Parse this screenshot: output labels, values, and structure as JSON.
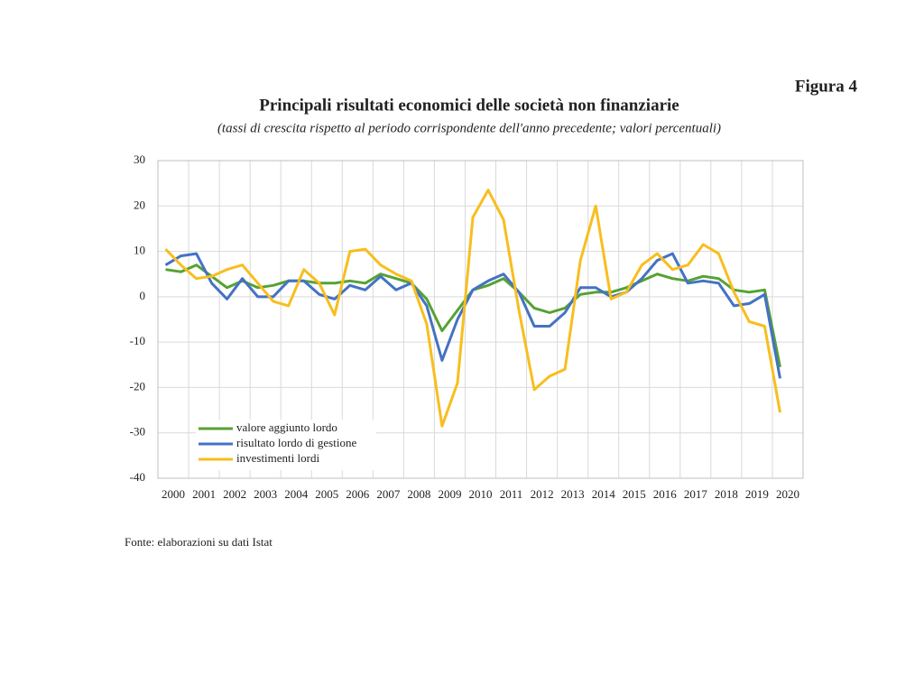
{
  "figure_label": "Figura 4",
  "chart_data": {
    "type": "line",
    "title": "Principali risultati economici delle società non finanziarie",
    "subtitle": "(tassi di crescita rispetto al periodo corrispondente dell'anno precedente; valori percentuali)",
    "x": [
      2000.25,
      2000.75,
      2001.25,
      2001.75,
      2002.25,
      2002.75,
      2003.25,
      2003.75,
      2004.25,
      2004.75,
      2005.25,
      2005.75,
      2006.25,
      2006.75,
      2007.25,
      2007.75,
      2008.25,
      2008.75,
      2009.25,
      2009.75,
      2010.25,
      2010.75,
      2011.25,
      2011.75,
      2012.25,
      2012.75,
      2013.25,
      2013.75,
      2014.25,
      2014.75,
      2015.25,
      2015.75,
      2016.25,
      2016.75,
      2017.25,
      2017.75,
      2018.25,
      2018.75,
      2019.25,
      2019.75,
      2020.25
    ],
    "xlim": [
      2000,
      2021
    ],
    "xticks": [
      2000,
      2001,
      2002,
      2003,
      2004,
      2005,
      2006,
      2007,
      2008,
      2009,
      2010,
      2011,
      2012,
      2013,
      2014,
      2015,
      2016,
      2017,
      2018,
      2019,
      2020
    ],
    "ylim": [
      -40,
      30
    ],
    "yticks": [
      -40,
      -30,
      -20,
      -10,
      0,
      10,
      20,
      30
    ],
    "grid": true,
    "legend": "lower left",
    "series": [
      {
        "name": "valore aggiunto lordo",
        "color": "#55a232",
        "values": [
          6,
          5.5,
          7,
          4.5,
          2,
          3.5,
          2,
          2.5,
          3.5,
          3.5,
          3,
          3,
          3.5,
          3,
          5,
          4,
          3,
          -0.5,
          -7.5,
          -3,
          1.5,
          2.5,
          4,
          1,
          -2.5,
          -3.5,
          -2.5,
          0.5,
          1,
          1,
          2,
          3.5,
          5,
          4,
          3.5,
          4.5,
          4,
          1.5,
          1,
          1.5,
          -15.5
        ]
      },
      {
        "name": "risultato lordo di gestione",
        "color": "#4472c4",
        "values": [
          7,
          9,
          9.5,
          3,
          -0.5,
          4,
          0,
          0,
          3.5,
          3.5,
          0.5,
          -0.5,
          2.5,
          1.5,
          4.5,
          1.5,
          3,
          -2,
          -14,
          -5,
          1.5,
          3.5,
          5,
          1,
          -6.5,
          -6.5,
          -3.5,
          2,
          2,
          0,
          1,
          4,
          8,
          9.5,
          3,
          3.5,
          3,
          -2,
          -1.5,
          0.5,
          -18
        ]
      },
      {
        "name": "investimenti lordi",
        "color": "#f7be1e",
        "values": [
          10.5,
          7,
          4,
          4.5,
          6,
          7,
          3,
          -1,
          -2,
          6,
          3,
          -4,
          10,
          10.5,
          7,
          5,
          3.5,
          -6,
          -28.5,
          -19,
          17.5,
          23.5,
          17,
          -3,
          -20.5,
          -17.5,
          -16,
          8,
          20,
          -0.5,
          1,
          7,
          9.5,
          6,
          7,
          11.5,
          9.5,
          1,
          -5.5,
          -6.5,
          -25.5
        ]
      }
    ]
  },
  "source": "Fonte: elaborazioni su dati Istat"
}
